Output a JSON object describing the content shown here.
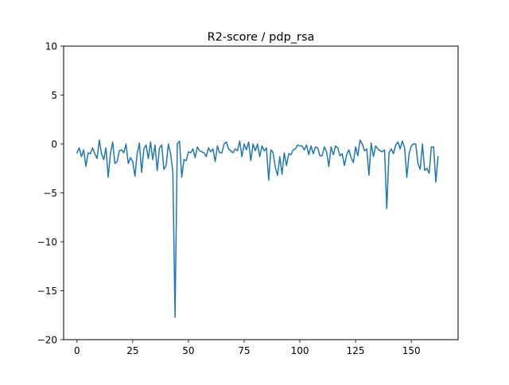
{
  "chart_data": {
    "type": "line",
    "title": "R2-score / pdp_rsa",
    "xlabel": "",
    "ylabel": "",
    "xlim": [
      -6,
      171
    ],
    "ylim": [
      -20,
      10
    ],
    "xticks": [
      0,
      25,
      50,
      75,
      100,
      125,
      150
    ],
    "yticks": [
      10,
      5,
      0,
      -5,
      -10,
      -15,
      -20
    ],
    "xtick_labels": [
      "0",
      "25",
      "50",
      "75",
      "100",
      "125",
      "150"
    ],
    "ytick_labels": [
      "10",
      "5",
      "0",
      "−5",
      "−10",
      "−15",
      "−20"
    ],
    "grid": false,
    "legend": "none",
    "colors": {
      "line": "#1f77b4",
      "axes": "#000000",
      "background": "#ffffff"
    },
    "series": [
      {
        "values": [
          -0.9,
          -0.4,
          -1.3,
          -0.6,
          -2.3,
          -0.9,
          -1.0,
          -0.4,
          -1.0,
          -1.5,
          0.4,
          -1.0,
          -1.6,
          -0.4,
          -3.4,
          -1.0,
          0.2,
          -2.0,
          -1.8,
          -0.7,
          -0.6,
          -0.9,
          0.0,
          -2.0,
          -1.4,
          -1.8,
          -3.3,
          -1.0,
          0.1,
          -2.9,
          -0.5,
          -0.1,
          -1.5,
          0.2,
          -1.6,
          -0.1,
          -2.7,
          -0.4,
          -0.1,
          -2.6,
          -2.2,
          0.0,
          -1.0,
          -2.8,
          -17.7,
          0.0,
          0.3,
          -3.4,
          -1.6,
          -1.7,
          -0.8,
          -0.9,
          -0.5,
          -1.4,
          -0.3,
          -0.7,
          -0.8,
          -0.9,
          -1.3,
          -0.4,
          -0.8,
          -0.5,
          -1.8,
          -0.2,
          -0.9,
          -0.9,
          0.0,
          0.2,
          -0.5,
          -0.7,
          -0.9,
          -0.5,
          -0.7,
          0.3,
          -1.3,
          0.0,
          -0.6,
          0.2,
          -1.7,
          0.0,
          -0.7,
          0.0,
          -1.3,
          -0.2,
          -0.7,
          -0.4,
          -3.7,
          -0.6,
          -0.9,
          -2.4,
          -3.2,
          -1.3,
          -3.1,
          -0.9,
          -2.2,
          -1.0,
          -1.1,
          -0.6,
          -0.5,
          -0.1,
          -0.2,
          -0.2,
          -0.6,
          -0.1,
          -1.1,
          -0.2,
          -1.0,
          -0.3,
          -0.4,
          -1.2,
          -1.2,
          -0.3,
          -0.8,
          -2.3,
          -0.3,
          -1.1,
          -0.2,
          -0.4,
          -1.2,
          -1.0,
          -2.2,
          -1.1,
          -0.6,
          -1.4,
          -1.9,
          -0.3,
          -1.2,
          0.4,
          0.0,
          -0.7,
          -0.5,
          -3.2,
          0.1,
          -1.3,
          -0.2,
          -0.5,
          -0.7,
          -0.8,
          -0.6,
          -6.6,
          -0.9,
          -0.5,
          -1.0,
          -0.1,
          0.2,
          -0.5,
          0.3,
          -0.4,
          -3.4,
          -1.0,
          -0.2,
          0.0,
          0.0,
          -2.0,
          -2.6,
          0.0,
          -2.7,
          -2.5,
          -3.0,
          -0.3,
          -0.3,
          -3.9,
          -1.3
        ]
      }
    ]
  }
}
